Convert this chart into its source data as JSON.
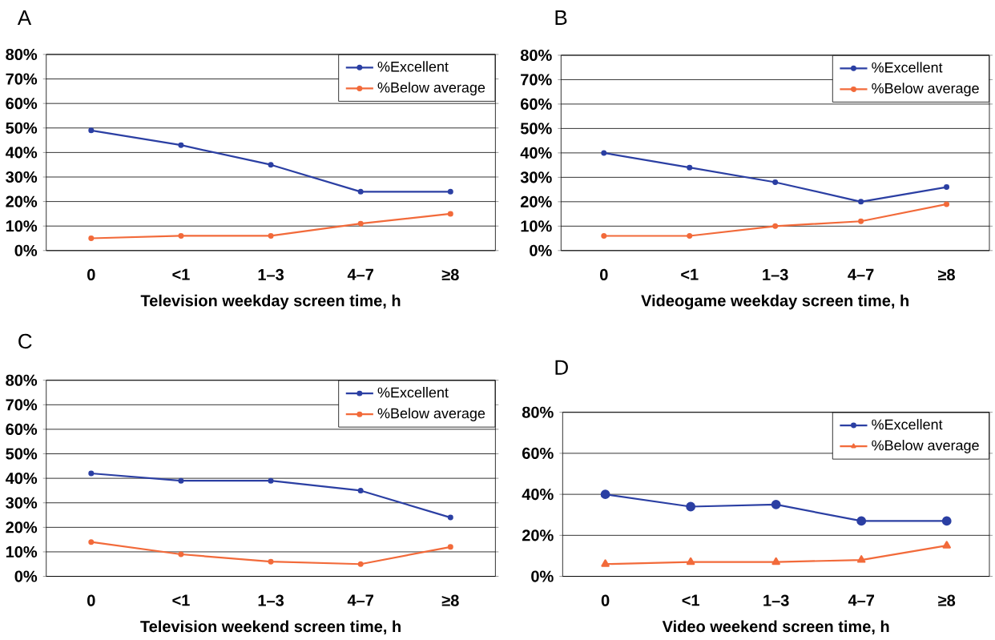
{
  "chart_data": [
    {
      "type": "line",
      "title": "A",
      "categories": [
        "0",
        "<1",
        "1–3",
        "4–7",
        "≥8"
      ],
      "xlabel": "Television weekday screen time, h",
      "series": [
        {
          "name": "%Excellent",
          "color": "#2b3fa3",
          "values": [
            49,
            43,
            35,
            24,
            24
          ]
        },
        {
          "name": "%Below average",
          "color": "#f26a3a",
          "values": [
            5,
            6,
            6,
            11,
            15
          ]
        }
      ],
      "ylim": [
        0,
        80
      ],
      "yticks": [
        {
          "value": 0,
          "label": "0%"
        },
        {
          "value": 10,
          "label": "10%"
        },
        {
          "value": 20,
          "label": "20%"
        },
        {
          "value": 30,
          "label": "30%"
        },
        {
          "value": 40,
          "label": "40%"
        },
        {
          "value": 50,
          "label": "50%"
        },
        {
          "value": 60,
          "label": "60%"
        },
        {
          "value": 70,
          "label": "70%"
        },
        {
          "value": 80,
          "label": "80%"
        }
      ],
      "grid": "y",
      "legend": "top right",
      "marker": "circle",
      "line_style": "solid"
    },
    {
      "type": "line",
      "title": "B",
      "categories": [
        "0",
        "<1",
        "1–3",
        "4–7",
        "≥8"
      ],
      "xlabel": "Videogame weekday screen time, h",
      "series": [
        {
          "name": "%Excellent",
          "color": "#2b3fa3",
          "values": [
            40,
            34,
            28,
            20,
            26
          ]
        },
        {
          "name": "%Below average",
          "color": "#f26a3a",
          "values": [
            6,
            6,
            10,
            12,
            19
          ]
        }
      ],
      "ylim": [
        0,
        80
      ],
      "yticks": [
        {
          "value": 0,
          "label": "0%"
        },
        {
          "value": 10,
          "label": "10%"
        },
        {
          "value": 20,
          "label": "20%"
        },
        {
          "value": 30,
          "label": "30%"
        },
        {
          "value": 40,
          "label": "40%"
        },
        {
          "value": 50,
          "label": "50%"
        },
        {
          "value": 60,
          "label": "60%"
        },
        {
          "value": 70,
          "label": "70%"
        },
        {
          "value": 80,
          "label": "80%"
        }
      ],
      "grid": "y",
      "legend": "top right",
      "marker": "circle",
      "line_style": "solid"
    },
    {
      "type": "line",
      "title": "C",
      "categories": [
        "0",
        "<1",
        "1–3",
        "4–7",
        "≥8"
      ],
      "xlabel": "Television weekend screen time, h",
      "series": [
        {
          "name": "%Excellent",
          "color": "#2b3fa3",
          "values": [
            42,
            39,
            39,
            35,
            24
          ]
        },
        {
          "name": "%Below average",
          "color": "#f26a3a",
          "values": [
            14,
            9,
            6,
            5,
            12
          ]
        }
      ],
      "ylim": [
        0,
        80
      ],
      "yticks": [
        {
          "value": 0,
          "label": "0%"
        },
        {
          "value": 10,
          "label": "10%"
        },
        {
          "value": 20,
          "label": "20%"
        },
        {
          "value": 30,
          "label": "30%"
        },
        {
          "value": 40,
          "label": "40%"
        },
        {
          "value": 50,
          "label": "50%"
        },
        {
          "value": 60,
          "label": "60%"
        },
        {
          "value": 70,
          "label": "70%"
        },
        {
          "value": 80,
          "label": "80%"
        }
      ],
      "grid": "y",
      "legend": "top right",
      "marker": "circle",
      "line_style": "solid"
    },
    {
      "type": "line",
      "title": "D",
      "categories": [
        "0",
        "<1",
        "1–3",
        "4–7",
        "≥8"
      ],
      "xlabel": "Video weekend screen time, h",
      "series": [
        {
          "name": "%Excellent",
          "color": "#2b3fa3",
          "values": [
            40,
            34,
            35,
            27,
            27
          ],
          "marker": "circle"
        },
        {
          "name": "%Below average",
          "color": "#f26a3a",
          "values": [
            6,
            7,
            7,
            8,
            15
          ],
          "marker": "triangle"
        }
      ],
      "ylim": [
        0,
        80
      ],
      "yticks": [
        {
          "value": 0,
          "label": "0%"
        },
        {
          "value": 20,
          "label": "20%"
        },
        {
          "value": 40,
          "label": "40%"
        },
        {
          "value": 60,
          "label": "60%"
        },
        {
          "value": 80,
          "label": "80%"
        }
      ],
      "grid": "y",
      "legend": "top right",
      "line_style": "solid"
    }
  ]
}
